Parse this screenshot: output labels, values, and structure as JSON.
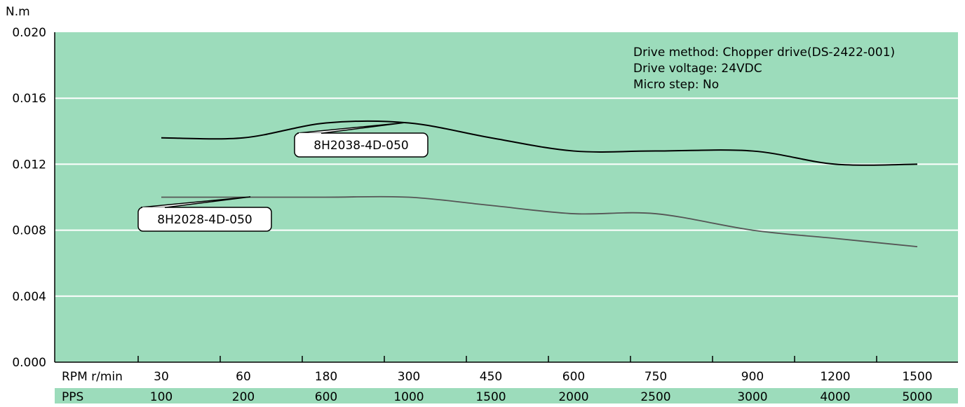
{
  "chart_data": {
    "type": "line",
    "y_unit": "N.m",
    "ylim": [
      0,
      0.02
    ],
    "y_ticks": [
      "0.000",
      "0.004",
      "0.008",
      "0.012",
      "0.016",
      "0.020"
    ],
    "grid": true,
    "x_row_labels": {
      "rpm": "RPM r/min",
      "pps": "PPS"
    },
    "categories_rpm": [
      "30",
      "60",
      "180",
      "300",
      "450",
      "600",
      "750",
      "900",
      "1200",
      "1500"
    ],
    "categories_pps": [
      "100",
      "200",
      "600",
      "1000",
      "1500",
      "2000",
      "2500",
      "3000",
      "4000",
      "5000"
    ],
    "series": [
      {
        "name": "8H2038-4D-050",
        "color": "#000000",
        "values": [
          0.0136,
          0.0136,
          0.0145,
          0.0145,
          0.0136,
          0.0128,
          0.0128,
          0.0128,
          0.012,
          0.012
        ]
      },
      {
        "name": "8H2028-4D-050",
        "color": "#555555",
        "values": [
          0.01,
          0.01,
          0.01,
          0.01,
          0.0095,
          0.009,
          0.009,
          0.008,
          0.0075,
          0.007
        ]
      }
    ],
    "annotations": [
      "Drive method: Chopper drive(DS-2422-001)",
      "Drive voltage: 24VDC",
      "Micro step: No"
    ],
    "background_color": "#9cdcbb",
    "pps_row_color": "#9cdcbb"
  }
}
